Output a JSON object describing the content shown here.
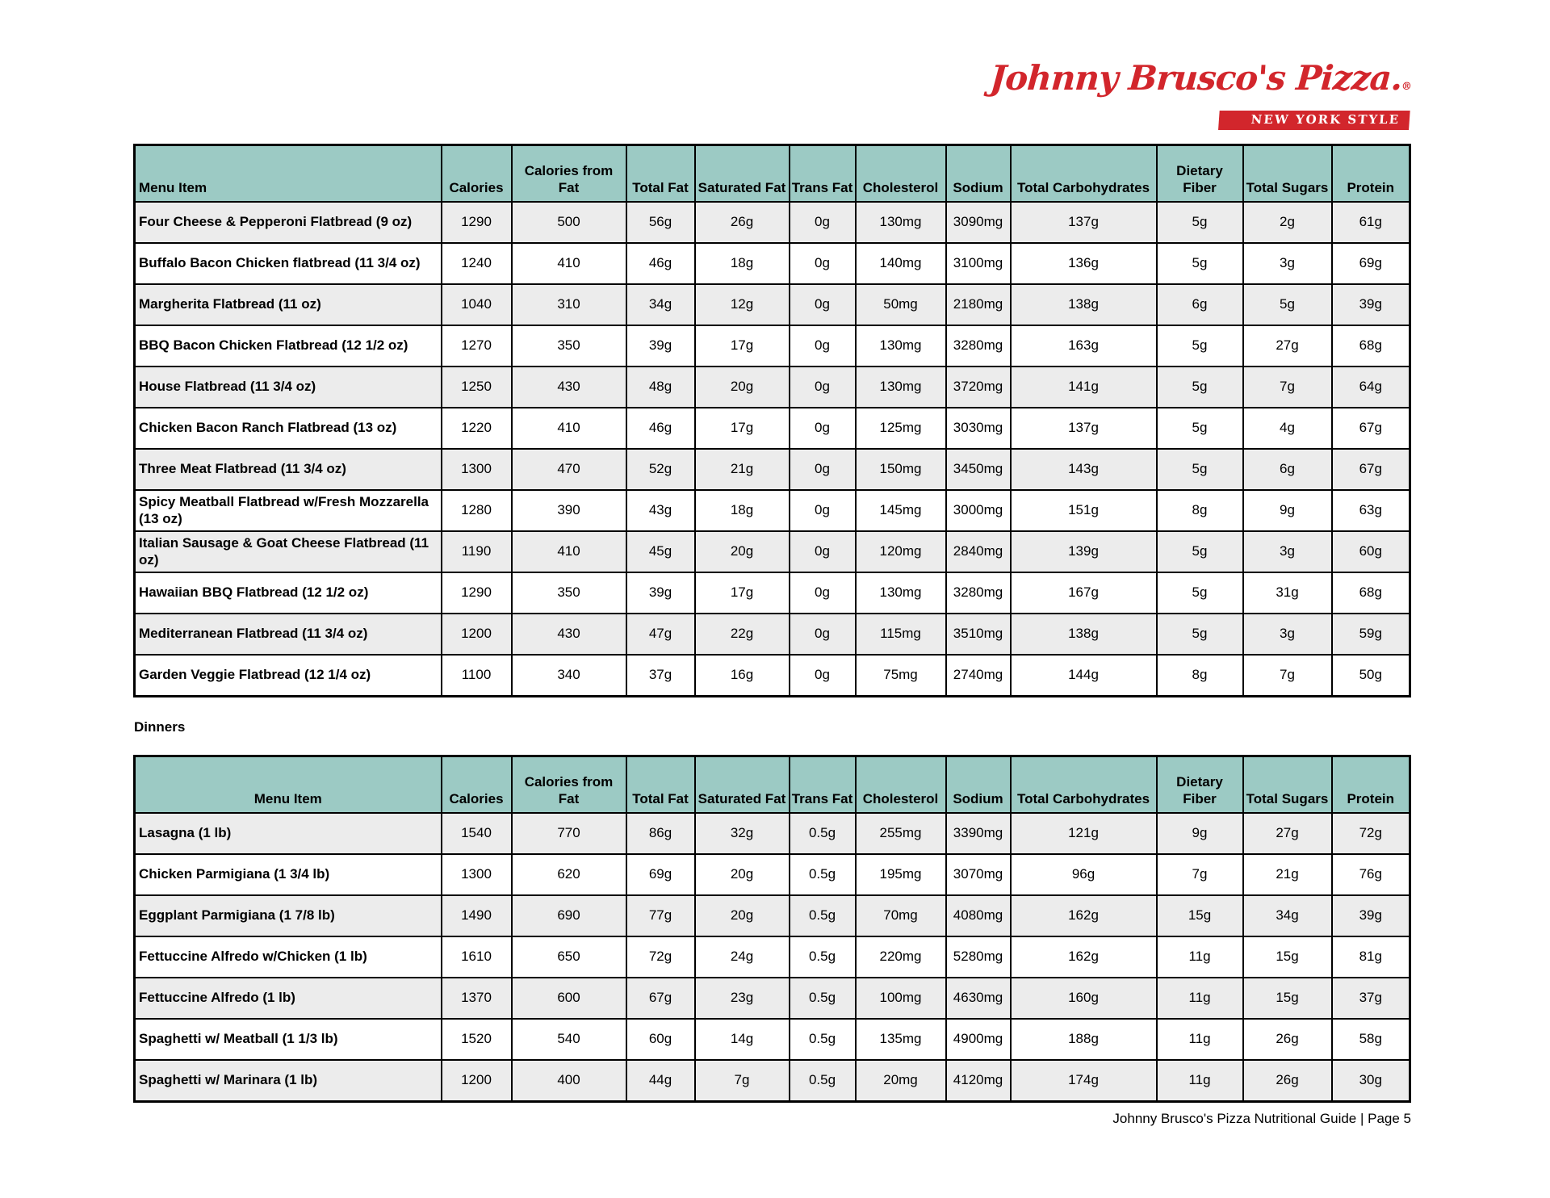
{
  "logo": {
    "brand": "Johnny Brusco's Pizza.",
    "registered": "®",
    "tagline": "NEW YORK STYLE",
    "color": "#d2262c"
  },
  "colors": {
    "header_bg": "#9ccac4",
    "row_stripe": "#ececec",
    "logo_red": "#d2262c",
    "border": "#000000"
  },
  "sections": [
    {
      "id": "flatbreads",
      "label": "",
      "menu_header_align": "left",
      "columns": [
        "Menu Item",
        "Calories",
        "Calories from Fat",
        "Total Fat",
        "Saturated Fat",
        "Trans Fat",
        "Cholesterol",
        "Sodium",
        "Total Carbohydrates",
        "Dietary Fiber",
        "Total Sugars",
        "Protein"
      ],
      "rows": [
        [
          "Four Cheese & Pepperoni Flatbread (9 oz)",
          "1290",
          "500",
          "56g",
          "26g",
          "0g",
          "130mg",
          "3090mg",
          "137g",
          "5g",
          "2g",
          "61g"
        ],
        [
          "Buffalo Bacon Chicken flatbread (11 3/4 oz)",
          "1240",
          "410",
          "46g",
          "18g",
          "0g",
          "140mg",
          "3100mg",
          "136g",
          "5g",
          "3g",
          "69g"
        ],
        [
          "Margherita Flatbread (11 oz)",
          "1040",
          "310",
          "34g",
          "12g",
          "0g",
          "50mg",
          "2180mg",
          "138g",
          "6g",
          "5g",
          "39g"
        ],
        [
          "BBQ Bacon Chicken Flatbread (12 1/2 oz)",
          "1270",
          "350",
          "39g",
          "17g",
          "0g",
          "130mg",
          "3280mg",
          "163g",
          "5g",
          "27g",
          "68g"
        ],
        [
          "House Flatbread (11 3/4 oz)",
          "1250",
          "430",
          "48g",
          "20g",
          "0g",
          "130mg",
          "3720mg",
          "141g",
          "5g",
          "7g",
          "64g"
        ],
        [
          "Chicken Bacon Ranch Flatbread (13 oz)",
          "1220",
          "410",
          "46g",
          "17g",
          "0g",
          "125mg",
          "3030mg",
          "137g",
          "5g",
          "4g",
          "67g"
        ],
        [
          "Three Meat Flatbread (11 3/4 oz)",
          "1300",
          "470",
          "52g",
          "21g",
          "0g",
          "150mg",
          "3450mg",
          "143g",
          "5g",
          "6g",
          "67g"
        ],
        [
          "Spicy Meatball Flatbread w/Fresh Mozzarella  (13 oz)",
          "1280",
          "390",
          "43g",
          "18g",
          "0g",
          "145mg",
          "3000mg",
          "151g",
          "8g",
          "9g",
          "63g"
        ],
        [
          "Italian Sausage & Goat Cheese Flatbread (11 oz)",
          "1190",
          "410",
          "45g",
          "20g",
          "0g",
          "120mg",
          "2840mg",
          "139g",
          "5g",
          "3g",
          "60g"
        ],
        [
          "Hawaiian BBQ Flatbread  (12 1/2 oz)",
          "1290",
          "350",
          "39g",
          "17g",
          "0g",
          "130mg",
          "3280mg",
          "167g",
          "5g",
          "31g",
          "68g"
        ],
        [
          "Mediterranean Flatbread (11 3/4 oz)",
          "1200",
          "430",
          "47g",
          "22g",
          "0g",
          "115mg",
          "3510mg",
          "138g",
          "5g",
          "3g",
          "59g"
        ],
        [
          "Garden Veggie Flatbread (12 1/4 oz)",
          "1100",
          "340",
          "37g",
          "16g",
          "0g",
          "75mg",
          "2740mg",
          "144g",
          "8g",
          "7g",
          "50g"
        ]
      ]
    },
    {
      "id": "dinners",
      "label": "Dinners",
      "menu_header_align": "center",
      "columns": [
        "Menu Item",
        "Calories",
        "Calories from Fat",
        "Total Fat",
        "Saturated Fat",
        "Trans Fat",
        "Cholesterol",
        "Sodium",
        "Total Carbohydrates",
        "Dietary Fiber",
        "Total Sugars",
        "Protein"
      ],
      "rows": [
        [
          "Lasagna  (1 lb)",
          "1540",
          "770",
          "86g",
          "32g",
          "0.5g",
          "255mg",
          "3390mg",
          "121g",
          "9g",
          "27g",
          "72g"
        ],
        [
          "Chicken Parmigiana (1 3/4 lb)",
          "1300",
          "620",
          "69g",
          "20g",
          "0.5g",
          "195mg",
          "3070mg",
          "96g",
          "7g",
          "21g",
          "76g"
        ],
        [
          "Eggplant Parmigiana (1 7/8 lb)",
          "1490",
          "690",
          "77g",
          "20g",
          "0.5g",
          "70mg",
          "4080mg",
          "162g",
          "15g",
          "34g",
          "39g"
        ],
        [
          "Fettuccine Alfredo w/Chicken  (1 lb)",
          "1610",
          "650",
          "72g",
          "24g",
          "0.5g",
          "220mg",
          "5280mg",
          "162g",
          "11g",
          "15g",
          "81g"
        ],
        [
          "Fettuccine Alfredo  (1 lb)",
          "1370",
          "600",
          "67g",
          "23g",
          "0.5g",
          "100mg",
          "4630mg",
          "160g",
          "11g",
          "15g",
          "37g"
        ],
        [
          "Spaghetti w/ Meatball  (1 1/3 lb)",
          "1520",
          "540",
          "60g",
          "14g",
          "0.5g",
          "135mg",
          "4900mg",
          "188g",
          "11g",
          "26g",
          "58g"
        ],
        [
          "Spaghetti w/ Marinara  (1 lb)",
          "1200",
          "400",
          "44g",
          "7g",
          "0.5g",
          "20mg",
          "4120mg",
          "174g",
          "11g",
          "26g",
          "30g"
        ]
      ]
    }
  ],
  "footer": {
    "text": "Johnny Brusco's Pizza Nutritional Guide | Page 5"
  }
}
